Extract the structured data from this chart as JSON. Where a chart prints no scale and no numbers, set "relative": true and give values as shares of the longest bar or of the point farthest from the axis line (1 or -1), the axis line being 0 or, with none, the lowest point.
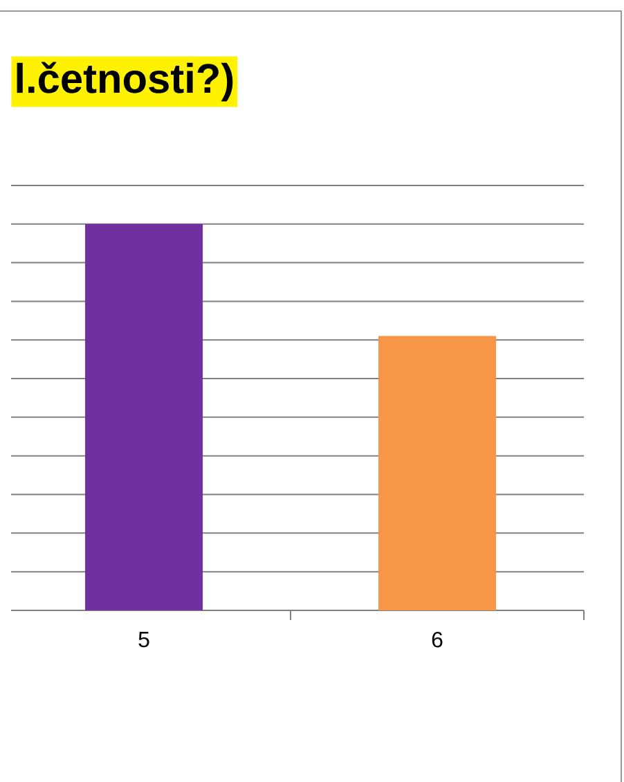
{
  "chart_data": {
    "type": "bar",
    "title": "l.četnosti?)",
    "categories": [
      "5",
      "6"
    ],
    "values": [
      1,
      0.71
    ],
    "colors": [
      "#7030a0",
      "#f79646"
    ],
    "relative": true,
    "grid": "y"
  }
}
